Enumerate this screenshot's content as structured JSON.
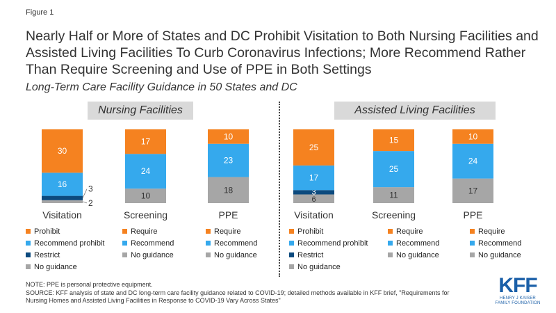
{
  "figure_label": "Figure 1",
  "title": "Nearly Half or More of States and DC Prohibit Visitation to Both Nursing Facilities and Assisted Living Facilities To Curb Coronavirus Infections; More Recommend Rather Than Require Screening and Use of PPE in Both Settings",
  "subtitle": "Long-Term Care Facility Guidance in 50 States and DC",
  "colors": {
    "orange": "#f58220",
    "lightblue": "#35a9ed",
    "darkblue": "#0c4a7e",
    "gray": "#a6a6a6"
  },
  "chart_data": [
    {
      "type": "bar",
      "stacked": true,
      "panel_title": "Nursing Facilities",
      "bars": [
        {
          "category": "Visitation",
          "segments": [
            {
              "name": "No guidance",
              "value": 2,
              "color": "gray"
            },
            {
              "name": "Restrict",
              "value": 3,
              "color": "darkblue"
            },
            {
              "name": "Recommend prohibit",
              "value": 16,
              "color": "lightblue"
            },
            {
              "name": "Prohibit",
              "value": 30,
              "color": "orange"
            }
          ],
          "legend": [
            {
              "label": "Prohibit",
              "color": "orange"
            },
            {
              "label": "Recommend prohibit",
              "color": "lightblue"
            },
            {
              "label": "Restrict",
              "color": "darkblue"
            },
            {
              "label": "No guidance",
              "color": "gray"
            }
          ]
        },
        {
          "category": "Screening",
          "segments": [
            {
              "name": "No guidance",
              "value": 10,
              "color": "gray"
            },
            {
              "name": "Recommend",
              "value": 24,
              "color": "lightblue"
            },
            {
              "name": "Require",
              "value": 17,
              "color": "orange"
            }
          ],
          "legend": [
            {
              "label": "Require",
              "color": "orange"
            },
            {
              "label": "Recommend",
              "color": "lightblue"
            },
            {
              "label": "No guidance",
              "color": "gray"
            }
          ]
        },
        {
          "category": "PPE",
          "segments": [
            {
              "name": "No guidance",
              "value": 18,
              "color": "gray"
            },
            {
              "name": "Recommend",
              "value": 23,
              "color": "lightblue"
            },
            {
              "name": "Require",
              "value": 10,
              "color": "orange"
            }
          ],
          "legend": [
            {
              "label": "Require",
              "color": "orange"
            },
            {
              "label": "Recommend",
              "color": "lightblue"
            },
            {
              "label": "No guidance",
              "color": "gray"
            }
          ]
        }
      ]
    },
    {
      "type": "bar",
      "stacked": true,
      "panel_title": "Assisted Living Facilities",
      "bars": [
        {
          "category": "Visitation",
          "segments": [
            {
              "name": "No guidance",
              "value": 6,
              "color": "gray"
            },
            {
              "name": "Restrict",
              "value": 3,
              "color": "darkblue"
            },
            {
              "name": "Recommend prohibit",
              "value": 17,
              "color": "lightblue"
            },
            {
              "name": "Prohibit",
              "value": 25,
              "color": "orange"
            }
          ],
          "legend": [
            {
              "label": "Prohibit",
              "color": "orange"
            },
            {
              "label": "Recommend prohibit",
              "color": "lightblue"
            },
            {
              "label": "Restrict",
              "color": "darkblue"
            },
            {
              "label": "No guidance",
              "color": "gray"
            }
          ]
        },
        {
          "category": "Screening",
          "segments": [
            {
              "name": "No guidance",
              "value": 11,
              "color": "gray"
            },
            {
              "name": "Recommend",
              "value": 25,
              "color": "lightblue"
            },
            {
              "name": "Require",
              "value": 15,
              "color": "orange"
            }
          ],
          "legend": [
            {
              "label": "Require",
              "color": "orange"
            },
            {
              "label": "Recommend",
              "color": "lightblue"
            },
            {
              "label": "No guidance",
              "color": "gray"
            }
          ]
        },
        {
          "category": "PPE",
          "segments": [
            {
              "name": "No guidance",
              "value": 17,
              "color": "gray"
            },
            {
              "name": "Recommend",
              "value": 24,
              "color": "lightblue"
            },
            {
              "name": "Require",
              "value": 10,
              "color": "orange"
            }
          ],
          "legend": [
            {
              "label": "Require",
              "color": "orange"
            },
            {
              "label": "Recommend",
              "color": "lightblue"
            },
            {
              "label": "No guidance",
              "color": "gray"
            }
          ]
        }
      ]
    }
  ],
  "note": "NOTE: PPE is personal protective equipment.",
  "source": "SOURCE: KFF analysis of state and DC long-term care facility guidance related to COVID-19; detailed methods available in KFF brief, \"Requirements for Nursing Homes and Assisted Living Facilities in Response to COVID-19 Vary Across States\"",
  "logo": {
    "name": "KFF",
    "line1": "HENRY J KAISER",
    "line2": "FAMILY FOUNDATION"
  }
}
